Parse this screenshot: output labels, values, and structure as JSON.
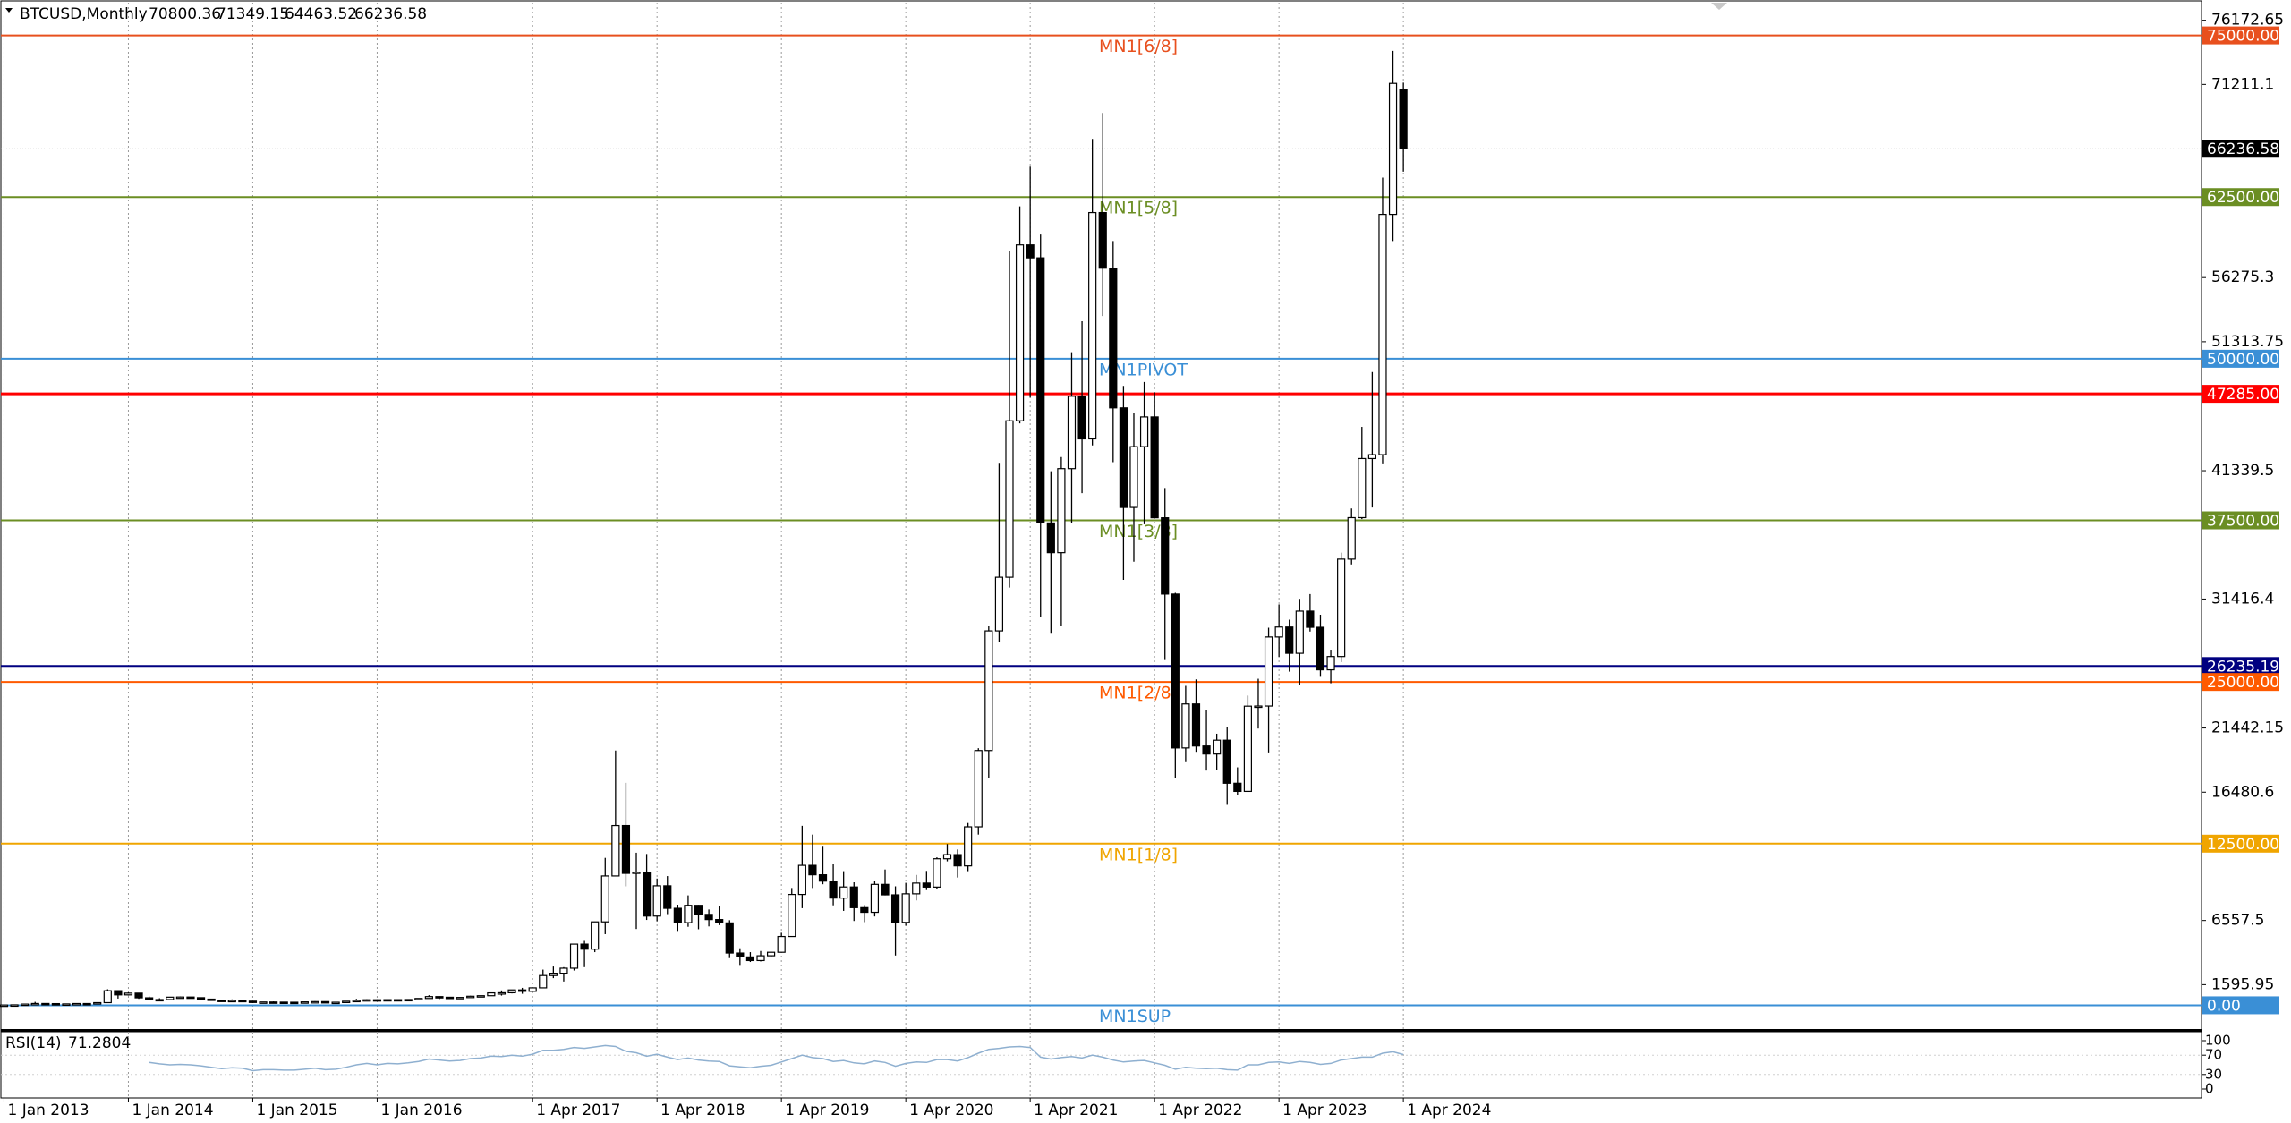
{
  "chart_data": {
    "type": "candlestick",
    "title": "BTCUSD,Monthly",
    "candles": {
      "open": [
        13,
        20,
        33,
        93,
        139,
        129,
        97,
        106,
        135,
        133,
        204,
        1130,
        805,
        940,
        580,
        445,
        445,
        630,
        640,
        590,
        480,
        388,
        338,
        375,
        320,
        217,
        254,
        244,
        236,
        230,
        263,
        284,
        230,
        236,
        314,
        378,
        430,
        368,
        437,
        416,
        448,
        530,
        674,
        624,
        575,
        608,
        700,
        742,
        960,
        970,
        1190,
        1080,
        1350,
        2300,
        2480,
        2870,
        4730,
        4340,
        6450,
        10000,
        13900,
        10200,
        10300,
        6900,
        9240,
        7500,
        6390,
        7730,
        7030,
        6630,
        6370,
        4040,
        3740,
        3460,
        3830,
        4100,
        5320,
        8570,
        10820,
        10090,
        9600,
        8290,
        9150,
        7550,
        7190,
        9350,
        8540,
        6410,
        8620,
        9450,
        9140,
        11330,
        11650,
        10780,
        13800,
        19700,
        28950,
        33100,
        45200,
        58800,
        57800,
        37300,
        35000,
        41500,
        47100,
        43800,
        61300,
        57000,
        46200,
        38500,
        43200,
        45500,
        37700,
        31800,
        19900,
        23300,
        20050,
        19430,
        20500,
        17170,
        16540,
        23130,
        23140,
        28480,
        29250,
        27220,
        30480,
        29230,
        25940,
        26970,
        34500,
        37710,
        42280,
        42580,
        61160,
        70800.36
      ],
      "high": [
        21,
        34,
        95,
        266,
        140,
        130,
        110,
        136,
        145,
        215,
        1240,
        1165,
        1000,
        960,
        680,
        550,
        640,
        680,
        650,
        600,
        490,
        420,
        460,
        385,
        320,
        270,
        300,
        260,
        245,
        268,
        315,
        285,
        245,
        335,
        500,
        470,
        460,
        440,
        440,
        460,
        550,
        780,
        700,
        625,
        620,
        740,
        755,
        980,
        1150,
        1200,
        1350,
        1350,
        2760,
        3000,
        2950,
        4750,
        4980,
        6470,
        11400,
        19700,
        17200,
        11800,
        11700,
        9800,
        9990,
        7780,
        8500,
        7760,
        7410,
        7680,
        6580,
        4410,
        4110,
        4200,
        4140,
        5610,
        9070,
        13880,
        13200,
        12330,
        10930,
        10370,
        9510,
        7750,
        9580,
        10500,
        9200,
        9470,
        10080,
        10390,
        11440,
        12470,
        12050,
        14100,
        19880,
        29300,
        41950,
        58350,
        61780,
        64850,
        59600,
        41300,
        42400,
        50500,
        52900,
        67000,
        69000,
        59100,
        47900,
        45800,
        48200,
        47400,
        40000,
        31900,
        24700,
        25200,
        22800,
        21000,
        21500,
        18400,
        23950,
        25250,
        29200,
        31000,
        29820,
        31430,
        31800,
        30200,
        27500,
        35000,
        38420,
        44730,
        48970,
        64000,
        73800,
        71349.15
      ],
      "low": [
        13,
        19,
        33,
        50,
        80,
        65,
        66,
        100,
        85,
        130,
        200,
        520,
        750,
        500,
        430,
        340,
        420,
        560,
        570,
        450,
        350,
        275,
        315,
        310,
        170,
        210,
        240,
        215,
        225,
        220,
        255,
        200,
        225,
        236,
        305,
        350,
        355,
        365,
        400,
        412,
        440,
        525,
        480,
        540,
        590,
        605,
        680,
        740,
        750,
        920,
        890,
        1060,
        1350,
        2100,
        1840,
        2690,
        2950,
        4110,
        5500,
        10000,
        9200,
        5900,
        6600,
        6500,
        7050,
        5750,
        6070,
        5880,
        6100,
        6200,
        3650,
        3120,
        3350,
        3390,
        3730,
        4090,
        5320,
        7510,
        9070,
        9360,
        7730,
        7300,
        6520,
        6430,
        6870,
        8500,
        3850,
        6160,
        8110,
        8910,
        8970,
        11130,
        9880,
        10370,
        13200,
        17600,
        28100,
        32300,
        45000,
        47000,
        30000,
        28800,
        29300,
        37300,
        39600,
        43300,
        53300,
        42000,
        32900,
        34300,
        37200,
        37700,
        26700,
        17600,
        18800,
        19600,
        18150,
        18200,
        15500,
        16250,
        16500,
        21400,
        19550,
        26950,
        25800,
        24800,
        28900,
        25400,
        24900,
        26540,
        34090,
        37600,
        38500,
        41900,
        59100,
        64463.52
      ],
      "close": [
        20,
        33,
        93,
        139,
        129,
        97,
        106,
        135,
        133,
        204,
        1130,
        805,
        940,
        580,
        445,
        445,
        630,
        640,
        590,
        480,
        388,
        338,
        375,
        320,
        217,
        254,
        244,
        236,
        230,
        263,
        284,
        230,
        236,
        314,
        378,
        430,
        368,
        437,
        416,
        448,
        530,
        674,
        624,
        575,
        608,
        700,
        742,
        960,
        970,
        1190,
        1080,
        1350,
        2300,
        2480,
        2870,
        4730,
        4340,
        6450,
        10000,
        13900,
        10200,
        10300,
        6900,
        9240,
        7500,
        6390,
        7730,
        7030,
        6630,
        6370,
        4040,
        3740,
        3460,
        3830,
        4100,
        5320,
        8570,
        10820,
        10090,
        9600,
        8290,
        9150,
        7550,
        7190,
        9350,
        8540,
        6410,
        8620,
        9450,
        9140,
        11330,
        11650,
        10780,
        13800,
        19700,
        28950,
        33100,
        45200,
        58800,
        57800,
        37300,
        35000,
        41500,
        47100,
        43800,
        61300,
        57000,
        46200,
        38500,
        43200,
        45500,
        37700,
        31800,
        19900,
        23300,
        20050,
        19430,
        20500,
        17170,
        16540,
        23130,
        23140,
        28480,
        29250,
        27220,
        30480,
        29230,
        25940,
        26970,
        34500,
        37710,
        42280,
        42580,
        61160,
        71290,
        66236.58
      ]
    },
    "xlim": [
      -0.3,
      212
    ],
    "xticks": [
      {
        "value": 0,
        "label": "1 Jan 2013"
      },
      {
        "value": 12,
        "label": "1 Jan 2014"
      },
      {
        "value": 24,
        "label": "1 Jan 2015"
      },
      {
        "value": 36,
        "label": "1 Jan 2016"
      },
      {
        "value": 51,
        "label": "1 Apr 2017"
      },
      {
        "value": 63,
        "label": "1 Apr 2018"
      },
      {
        "value": 75,
        "label": "1 Apr 2019"
      },
      {
        "value": 87,
        "label": "1 Apr 2020"
      },
      {
        "value": 99,
        "label": "1 Apr 2021"
      },
      {
        "value": 111,
        "label": "1 Apr 2022"
      },
      {
        "value": 123,
        "label": "1 Apr 2023"
      },
      {
        "value": 135,
        "label": "1 Apr 2024"
      }
    ],
    "grid": true,
    "ylim": [
      -1907,
      77532
    ],
    "yticks": [
      76172.65,
      71211.1,
      56275.3,
      51313.75,
      41339.5,
      31416.4,
      21442.15,
      16480.6,
      6557.5,
      1595.95
    ],
    "levels": [
      {
        "name": "MN1[6/8]",
        "value": 75000,
        "value_label": "75000.00",
        "color": "#e8501e"
      },
      {
        "name": "MN1[5/8]",
        "value": 62500,
        "value_label": "62500.00",
        "color": "#6b8e23"
      },
      {
        "name": "MN1PIVOT",
        "value": 50000,
        "value_label": "50000.00",
        "color": "#3a8fd6"
      },
      {
        "value": 47285,
        "value_label": "47285.00",
        "color": "#ff0000"
      },
      {
        "name": "MN1[3/8]",
        "value": 37500,
        "value_label": "37500.00",
        "color": "#6b8e23"
      },
      {
        "value": 26235.19,
        "color": "#000080"
      },
      {
        "name": "MN1[2/8]",
        "value": 25000,
        "value_label": "25000.00",
        "color": "#ff5a00"
      },
      {
        "name": "MN1[1/8]",
        "value": 12500,
        "value_label": "12500.00",
        "color": "#f0a500"
      },
      {
        "name": "MN1SUP",
        "value": 0,
        "value_label": "0.00",
        "color": "#3a8fd6"
      }
    ],
    "rsi": {
      "label": "RSI(14)",
      "color": "#8fb0d0",
      "ylim": [
        0,
        100
      ],
      "yticks": [
        100,
        70,
        30,
        0
      ],
      "values": [
        null,
        null,
        null,
        null,
        null,
        null,
        null,
        null,
        null,
        null,
        null,
        null,
        null,
        null,
        55,
        52,
        50,
        51,
        50,
        48,
        45,
        42,
        44,
        43,
        38,
        40,
        40,
        39,
        39,
        41,
        43,
        40,
        41,
        45,
        50,
        53,
        50,
        53,
        52,
        54,
        57,
        62,
        60,
        58,
        59,
        63,
        64,
        68,
        67,
        70,
        68,
        72,
        80,
        80,
        82,
        86,
        84,
        87,
        90,
        88,
        78,
        75,
        68,
        72,
        66,
        61,
        64,
        60,
        58,
        57,
        48,
        46,
        44,
        47,
        49,
        56,
        63,
        70,
        65,
        63,
        57,
        59,
        54,
        52,
        58,
        55,
        47,
        53,
        56,
        55,
        61,
        61,
        58,
        65,
        74,
        82,
        84,
        87,
        88,
        86,
        66,
        62,
        65,
        67,
        64,
        70,
        66,
        60,
        56,
        58,
        59,
        54,
        49,
        41,
        45,
        43,
        42,
        43,
        40,
        39,
        50,
        50,
        55,
        56,
        53,
        57,
        55,
        51,
        53,
        60,
        63,
        66,
        66,
        74,
        77,
        71.2804
      ]
    }
  }
}
